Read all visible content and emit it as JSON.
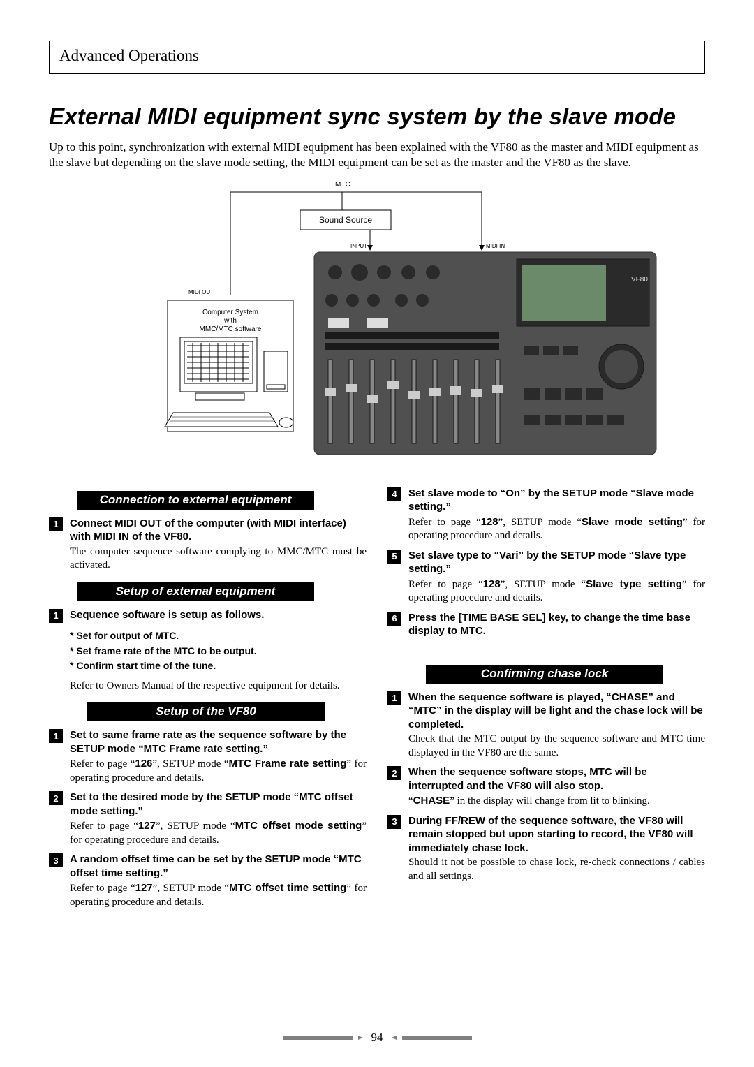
{
  "colors": {
    "section_bg": "#000000",
    "numbox_bg": "#000000",
    "footer_bar": "#808080",
    "diagram_device_bg": "#505050",
    "diagram_box_border": "#000000"
  },
  "header": "Advanced Operations",
  "title": "External MIDI equipment sync system by the slave mode",
  "intro": "Up to this point, synchronization with external MIDI equipment has been explained with the VF80 as the master and MIDI equipment as the slave but depending on the slave mode setting, the MIDI equipment can be set as the master and the VF80 as the slave.",
  "diagram": {
    "mtc_label": "MTC",
    "sound_source": "Sound Source",
    "input_label": "INPUT",
    "midi_in": "MIDI IN",
    "midi_out": "MIDI OUT",
    "computer_label": "Computer System\nwith\nMMC/MTC software",
    "device_label": "VF80"
  },
  "left": {
    "sec1_title": "Connection to external equipment",
    "sec1_steps": [
      {
        "n": "1",
        "title": "Connect MIDI OUT of the computer (with MIDI interface) with MIDI IN of the VF80.",
        "desc": "The computer sequence software complying to MMC/MTC must be activated."
      }
    ],
    "sec2_title": "Setup of external equipment",
    "sec2_step1_n": "1",
    "sec2_step1_title": "Sequence software is setup as follows.",
    "bullets": [
      "* Set for output of MTC.",
      "* Set frame rate of the MTC to be output.",
      "* Confirm start time of the tune."
    ],
    "after_bullets": "Refer to Owners Manual of the respective equipment for details.",
    "sec3_title": "Setup of the VF80",
    "sec3_steps": [
      {
        "n": "1",
        "title": "Set to same frame rate as the sequence software by the SETUP mode “MTC Frame rate setting.”",
        "desc_pre": "Refer to page “",
        "page": "126",
        "desc_mid": "”, SETUP mode “",
        "bold": "MTC Frame rate setting",
        "desc_post": "” for operating procedure and details."
      },
      {
        "n": "2",
        "title": "Set to the desired mode by the SETUP mode “MTC offset mode setting.”",
        "desc_pre": "Refer to page “",
        "page": "127",
        "desc_mid": "”, SETUP mode “",
        "bold": "MTC offset mode setting",
        "desc_post": "” for operating procedure and details."
      },
      {
        "n": "3",
        "title": "A random offset time can be set by the SETUP mode “MTC offset time setting.”",
        "desc_pre": "Refer to page “",
        "page": "127",
        "desc_mid": "”, SETUP mode “",
        "bold": "MTC offset time setting",
        "desc_post": "” for operating procedure and details."
      }
    ]
  },
  "right": {
    "cont_steps": [
      {
        "n": "4",
        "title": "Set slave mode to “On” by the SETUP mode “Slave mode setting.”",
        "desc_pre": "Refer to page “",
        "page": "128",
        "desc_mid": "”, SETUP mode “",
        "bold": "Slave mode setting",
        "desc_post": "” for operating procedure and details."
      },
      {
        "n": "5",
        "title": "Set slave type to “Vari” by the SETUP mode “Slave type setting.”",
        "desc_pre": "Refer to page “",
        "page": "128",
        "desc_mid": "”, SETUP mode “",
        "bold": "Slave type setting",
        "desc_post": "” for operating procedure and details."
      },
      {
        "n": "6",
        "title": "Press the [TIME BASE SEL] key, to change the time base display to MTC.",
        "desc": ""
      }
    ],
    "sec4_title": "Confirming chase lock",
    "sec4_steps": [
      {
        "n": "1",
        "title": "When the sequence software is played, “CHASE” and “MTC” in the display will be light and the chase lock will be completed.",
        "desc": "Check that the MTC output by the sequence software and MTC time displayed in the VF80 are the same."
      },
      {
        "n": "2",
        "title": "When the sequence software stops, MTC will be interrupted and the VF80 will also stop.",
        "desc_pre": "“",
        "bold": "CHASE",
        "desc_post": "” in the display will change from lit to blinking."
      },
      {
        "n": "3",
        "title": "During FF/REW of the sequence software, the VF80 will remain stopped but upon starting to record, the VF80 will immediately chase lock.",
        "desc": "Should it not be possible to chase lock, re-check connections / cables and all settings."
      }
    ]
  },
  "page_number": "94"
}
